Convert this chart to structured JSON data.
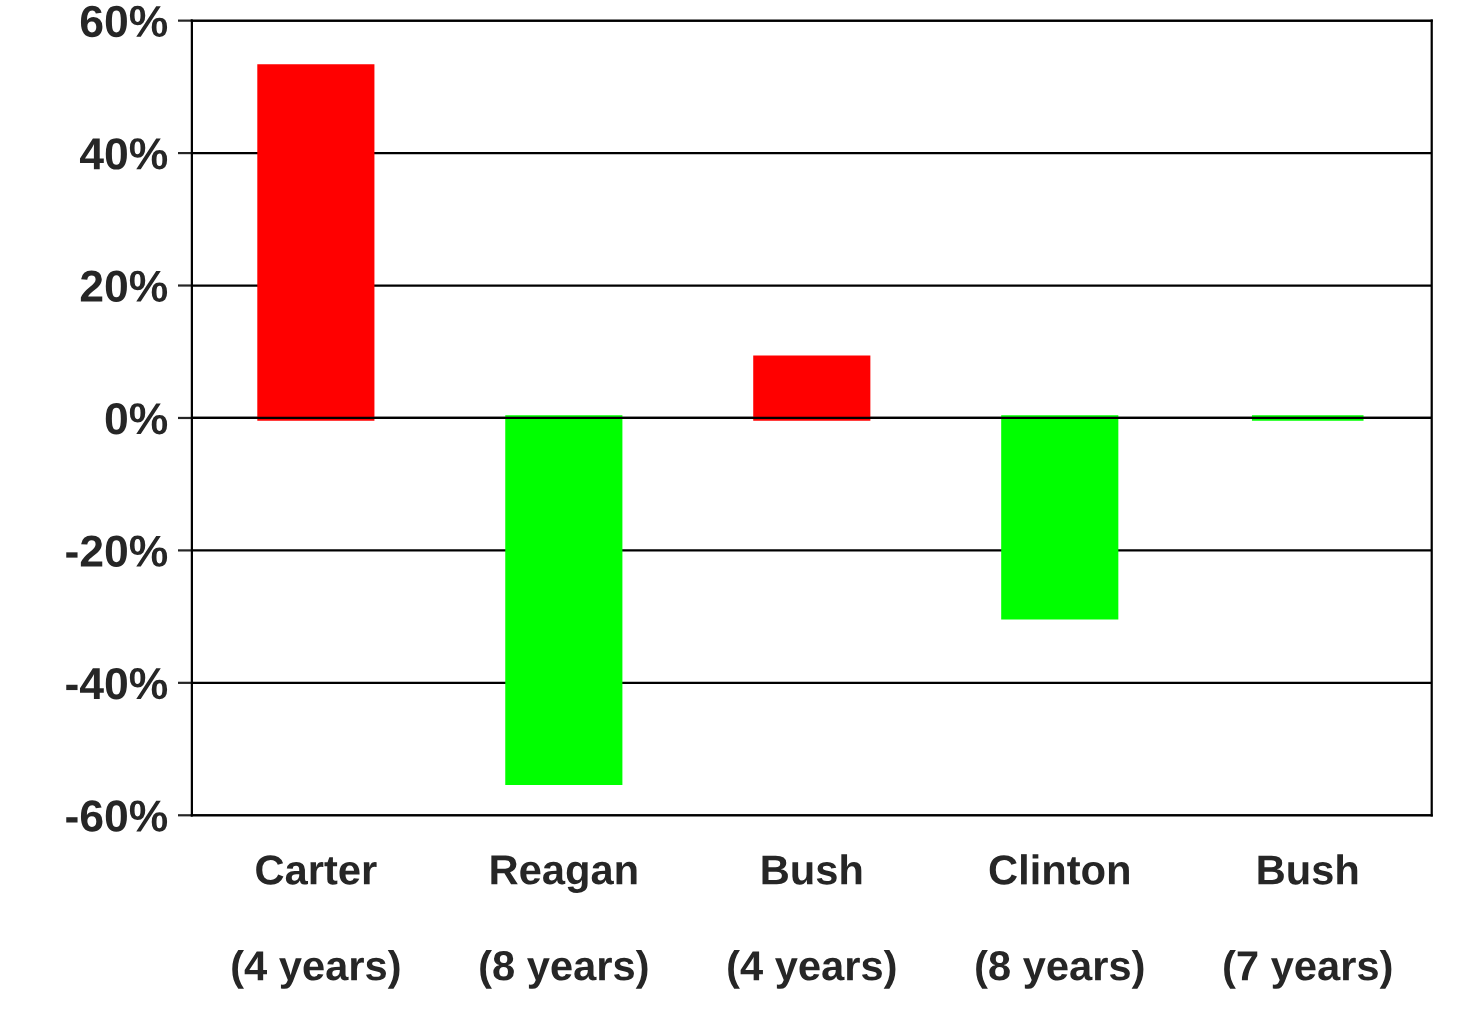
{
  "chart_data": {
    "type": "bar",
    "categories": [
      "Carter\n\n(4 years)",
      "Reagan\n\n(8 years)",
      "Bush\n\n(4 years)",
      "Clinton\n\n(8 years)",
      "Bush\n\n(7 years)"
    ],
    "values": [
      53,
      -55,
      9,
      -30,
      0
    ],
    "colors": [
      "#ff0000",
      "#00ff00",
      "#ff0000",
      "#00ff00",
      "#00ff00"
    ],
    "ylim": [
      -60,
      60
    ],
    "yticks": [
      {
        "value": -60,
        "label": "-60%"
      },
      {
        "value": -40,
        "label": "-40%"
      },
      {
        "value": -20,
        "label": "-20%"
      },
      {
        "value": 0,
        "label": "0%"
      },
      {
        "value": 20,
        "label": "20%"
      },
      {
        "value": 40,
        "label": "40%"
      },
      {
        "value": 60,
        "label": "60%"
      }
    ],
    "grid": "y"
  }
}
